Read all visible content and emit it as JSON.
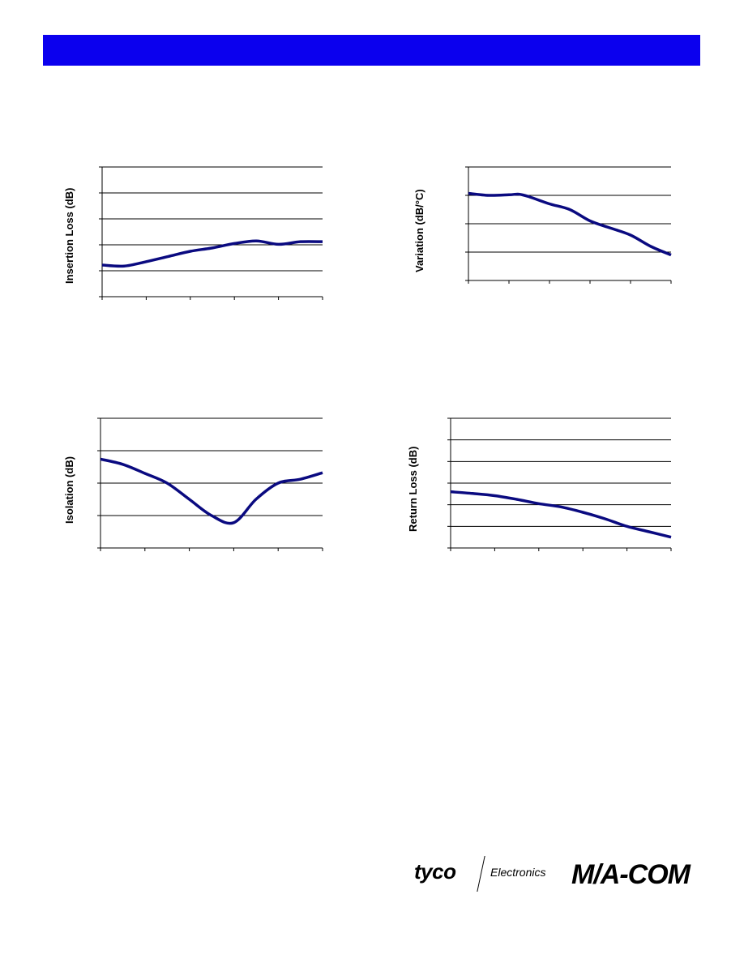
{
  "header": {
    "color": "#0b00ee"
  },
  "logos": {
    "tyco": "tyco",
    "electronics": "Electronics",
    "macom": "M/A-COM"
  },
  "chart_data": [
    {
      "type": "line",
      "ylabel": "Insertion Loss (dB)",
      "x": [
        0,
        0.5,
        1,
        1.5,
        2,
        2.5,
        3,
        3.5,
        4,
        4.5,
        5
      ],
      "series": [
        {
          "values": [
            2.22,
            2.18,
            2.35,
            2.55,
            2.75,
            2.88,
            3.05,
            3.15,
            3.02,
            3.12,
            3.12
          ]
        }
      ],
      "ylim": [
        1,
        6
      ],
      "xlim": [
        0,
        5
      ],
      "y_gridlines": 5,
      "x_ticks": 5,
      "color": "#0a0a80"
    },
    {
      "type": "line",
      "ylabel": "Variation (dB/°C)",
      "x": [
        0,
        0.5,
        1,
        1.25,
        1.5,
        2,
        2.5,
        3,
        3.5,
        4,
        4.5,
        5
      ],
      "series": [
        {
          "values": [
            3.07,
            3.0,
            3.02,
            3.04,
            2.95,
            2.7,
            2.5,
            2.1,
            1.85,
            1.6,
            1.2,
            0.9
          ]
        }
      ],
      "ylim": [
        0,
        4
      ],
      "xlim": [
        0,
        5
      ],
      "y_gridlines": 4,
      "x_ticks": 5,
      "color": "#0a0a80"
    },
    {
      "type": "line",
      "ylabel": "Isolation (dB)",
      "x": [
        0,
        0.5,
        1,
        1.5,
        2,
        2.5,
        3,
        3.5,
        4,
        4.5,
        5
      ],
      "series": [
        {
          "values": [
            2.74,
            2.58,
            2.3,
            2.0,
            1.5,
            1.0,
            0.78,
            1.5,
            2.0,
            2.12,
            2.32
          ]
        }
      ],
      "ylim": [
        0,
        4
      ],
      "xlim": [
        0,
        5
      ],
      "y_gridlines": 4,
      "x_ticks": 5,
      "color": "#0a0a80"
    },
    {
      "type": "line",
      "ylabel": "Return Loss (dB)",
      "x": [
        0,
        0.5,
        1,
        1.5,
        2,
        2.5,
        3,
        3.5,
        4,
        4.5,
        5
      ],
      "series": [
        {
          "values": [
            2.6,
            2.52,
            2.42,
            2.25,
            2.05,
            1.9,
            1.65,
            1.35,
            1.0,
            0.75,
            0.5
          ]
        }
      ],
      "ylim": [
        0,
        6
      ],
      "xlim": [
        0,
        5
      ],
      "y_gridlines": 6,
      "x_ticks": 5,
      "color": "#0a0a80"
    }
  ]
}
